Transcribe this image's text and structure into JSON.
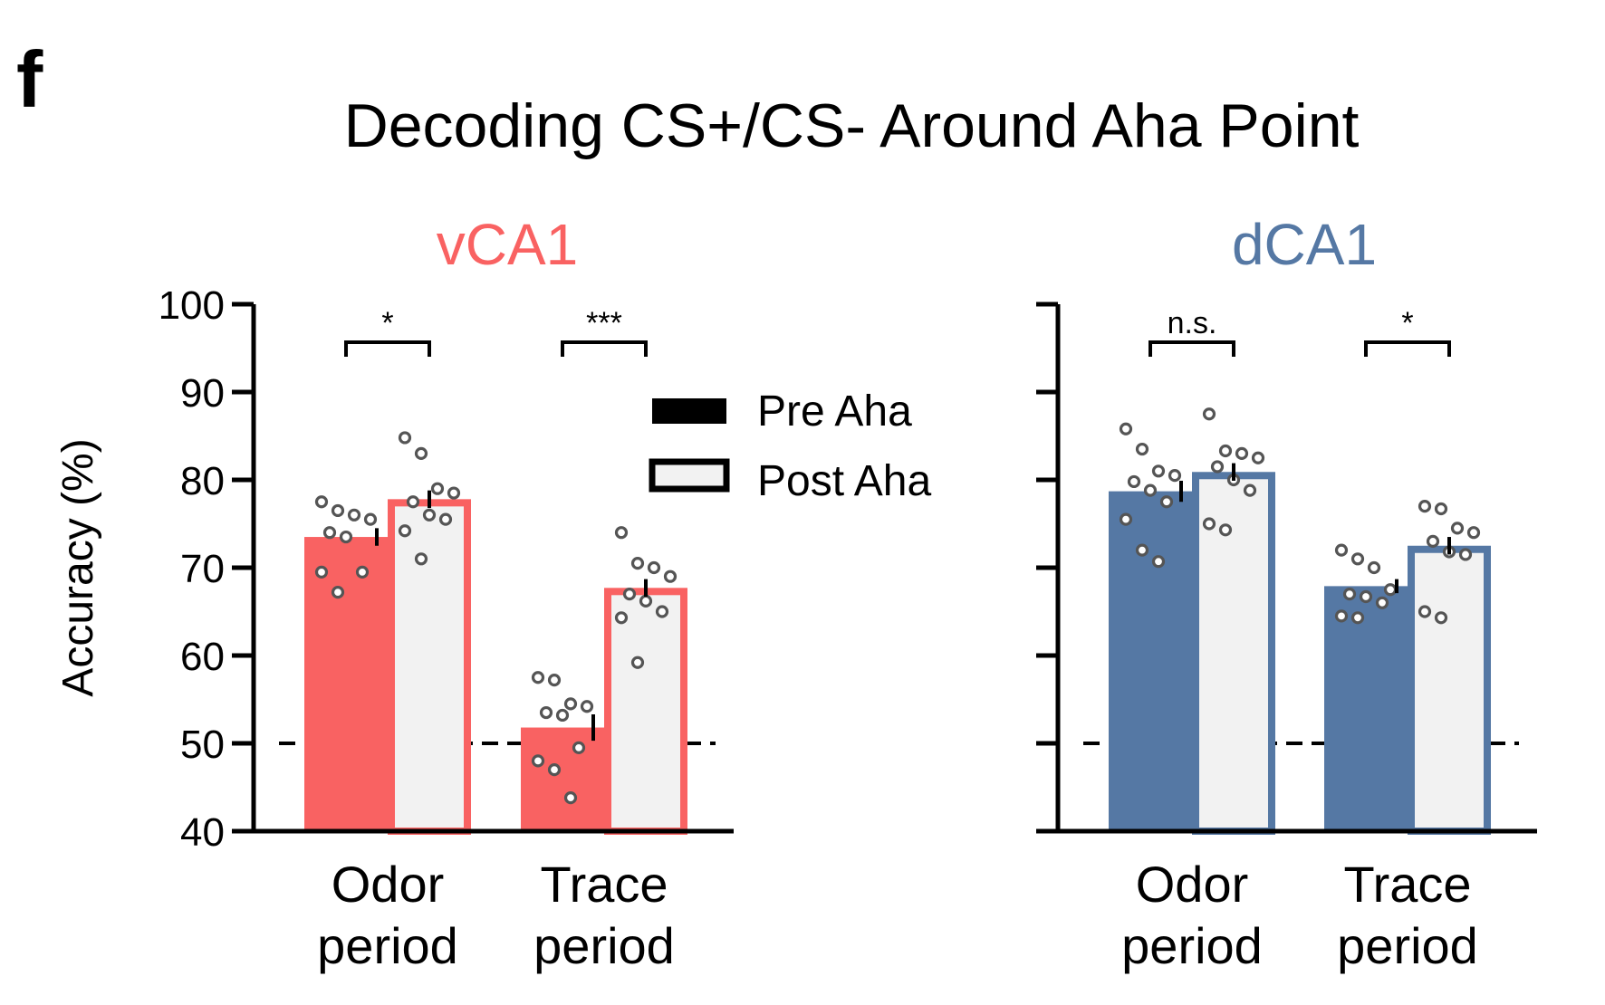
{
  "panel_letter": "f",
  "title": "Decoding CS+/CS- Around Aha Point",
  "legend": {
    "pre": "Pre Aha",
    "post": "Post Aha"
  },
  "colors": {
    "vCA1": "#f96262",
    "dCA1": "#5578a4",
    "post_fill": "#f2f2f2",
    "axis": "#000000",
    "chance_line": "#000000",
    "points": "#555555"
  },
  "chart_data": [
    {
      "type": "bar",
      "title": "vCA1",
      "title_color": "#f96262",
      "ylabel": "Accuracy (%)",
      "ylim": [
        40,
        100
      ],
      "yticks": [
        "40",
        "50",
        "60",
        "70",
        "80",
        "90",
        "100"
      ],
      "chance_level": 50,
      "categories": [
        "Odor\nperiod",
        "Trace\nperiod"
      ],
      "series": [
        {
          "name": "Pre Aha",
          "values": [
            73.5,
            51.8
          ],
          "sem": [
            1.0,
            1.5
          ],
          "points": [
            [
              77.5,
              76.5,
              76.0,
              75.5,
              74.0,
              73.5,
              69.5,
              69.5,
              67.2
            ],
            [
              57.5,
              57.2,
              54.5,
              54.2,
              53.5,
              53.2,
              49.5,
              48.0,
              47.0,
              43.8
            ]
          ]
        },
        {
          "name": "Post Aha",
          "values": [
            77.8,
            67.7
          ],
          "sem": [
            1.0,
            1.0
          ],
          "points": [
            [
              84.8,
              83.0,
              79.0,
              78.5,
              77.5,
              76.0,
              75.5,
              74.2,
              71.0
            ],
            [
              74.0,
              70.5,
              70.0,
              69.0,
              67.0,
              66.2,
              65.0,
              64.3,
              59.2
            ]
          ]
        }
      ],
      "significance": [
        "*",
        "***"
      ]
    },
    {
      "type": "bar",
      "title": "dCA1",
      "title_color": "#5578a4",
      "ylabel": "",
      "ylim": [
        40,
        100
      ],
      "chance_level": 50,
      "categories": [
        "Odor\nperiod",
        "Trace\nperiod"
      ],
      "series": [
        {
          "name": "Pre Aha",
          "values": [
            78.7,
            67.9
          ],
          "sem": [
            1.2,
            0.8
          ],
          "points": [
            [
              85.8,
              83.5,
              81.0,
              80.5,
              79.8,
              78.8,
              77.5,
              75.5,
              72.0,
              70.7
            ],
            [
              72.0,
              71.0,
              70.0,
              67.5,
              67.0,
              66.7,
              66.0,
              64.5,
              64.3
            ]
          ]
        },
        {
          "name": "Post Aha",
          "values": [
            80.9,
            72.5
          ],
          "sem": [
            1.0,
            1.0
          ],
          "points": [
            [
              87.5,
              83.3,
              83.0,
              82.5,
              81.5,
              80.0,
              78.8,
              75.0,
              74.3
            ],
            [
              77.0,
              76.7,
              74.5,
              74.0,
              73.0,
              71.8,
              71.5,
              65.0,
              64.3
            ]
          ]
        }
      ],
      "significance": [
        "n.s.",
        "*"
      ]
    }
  ]
}
